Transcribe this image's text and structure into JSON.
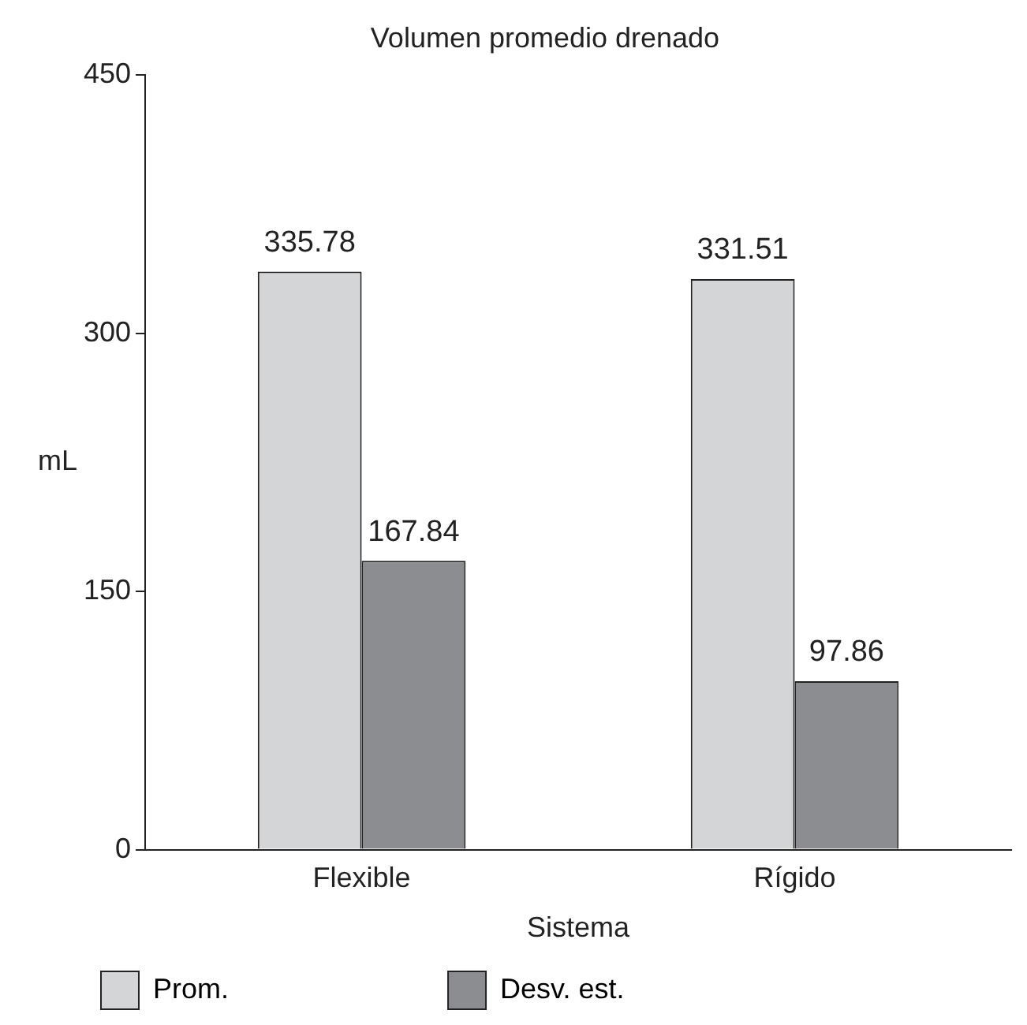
{
  "chart_data": {
    "type": "bar",
    "title": "Volumen promedio drenado",
    "xlabel": "Sistema",
    "ylabel": "mL",
    "categories": [
      "Flexible",
      "Rígido"
    ],
    "series": [
      {
        "name": "Prom.",
        "color": "#d4d5d7",
        "values": [
          335.78,
          331.51
        ]
      },
      {
        "name": "Desv. est.",
        "color": "#8c8d90",
        "values": [
          167.84,
          97.86
        ]
      }
    ],
    "ylim": [
      0,
      450
    ],
    "yticks": [
      0,
      150,
      300,
      450
    ],
    "grid": false,
    "data_labels": true,
    "legend": "bottom"
  }
}
